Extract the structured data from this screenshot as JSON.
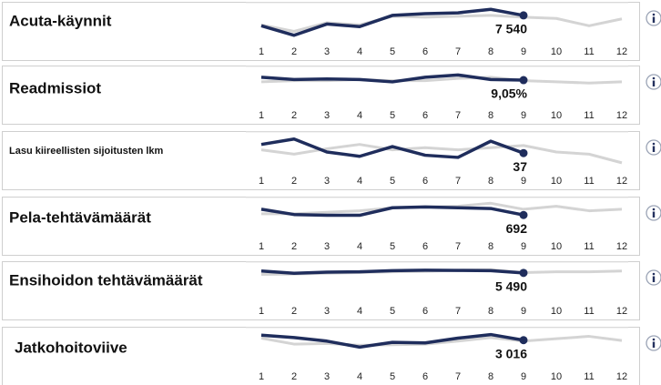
{
  "chart_data": [
    {
      "type": "line",
      "title": "Acuta-käynnit",
      "categories": [
        "1",
        "2",
        "3",
        "4",
        "5",
        "6",
        "7",
        "8",
        "9",
        "10",
        "11",
        "12"
      ],
      "series": [
        {
          "color": "#1f2d5c",
          "values": [
            7060,
            6620,
            7140,
            7020,
            7540,
            7620,
            7660,
            7820,
            7540,
            null,
            null,
            null
          ],
          "value_labels": [
            null,
            null,
            null,
            null,
            null,
            null,
            null,
            null,
            "7 540",
            null,
            null,
            null
          ]
        },
        {
          "color": "#d4d4d4",
          "values": [
            7100,
            6800,
            7200,
            7100,
            7500,
            7460,
            7500,
            7540,
            7460,
            7400,
            7060,
            7380
          ]
        }
      ],
      "ylim": [
        6400,
        8000
      ]
    },
    {
      "type": "line",
      "title": "Readmissiot",
      "categories": [
        "1",
        "2",
        "3",
        "4",
        "5",
        "6",
        "7",
        "8",
        "9",
        "10",
        "11",
        "12"
      ],
      "series": [
        {
          "color": "#1f2d5c",
          "values": [
            9.3,
            9.1,
            9.15,
            9.1,
            8.9,
            9.3,
            9.5,
            9.1,
            9.05,
            null,
            null,
            null
          ],
          "value_labels": [
            null,
            null,
            null,
            null,
            null,
            null,
            null,
            null,
            "9,05%",
            null,
            null,
            null
          ]
        },
        {
          "color": "#d4d4d4",
          "values": [
            8.9,
            9.0,
            9.0,
            9.1,
            9.0,
            9.0,
            9.2,
            9.3,
            9.0,
            8.9,
            8.8,
            8.9
          ]
        }
      ],
      "ylim": [
        7,
        10
      ]
    },
    {
      "type": "line",
      "title": "Lasu kiireellisten sijoitusten lkm",
      "categories": [
        "1",
        "2",
        "3",
        "4",
        "5",
        "6",
        "7",
        "8",
        "9",
        "10",
        "11",
        "12"
      ],
      "series": [
        {
          "color": "#1f2d5c",
          "values": [
            45,
            50,
            38,
            34,
            43,
            35,
            33,
            48,
            37,
            null,
            null,
            null
          ],
          "value_labels": [
            null,
            null,
            null,
            null,
            null,
            null,
            null,
            null,
            "37",
            null,
            null,
            null
          ]
        },
        {
          "color": "#d4d4d4",
          "values": [
            40,
            36,
            41,
            45,
            40,
            42,
            40,
            42,
            44,
            38,
            36,
            28
          ]
        }
      ],
      "ylim": [
        22,
        54
      ]
    },
    {
      "type": "line",
      "title": "Pela-tehtävämäärät",
      "categories": [
        "1",
        "2",
        "3",
        "4",
        "5",
        "6",
        "7",
        "8",
        "9",
        "10",
        "11",
        "12"
      ],
      "series": [
        {
          "color": "#1f2d5c",
          "values": [
            730,
            695,
            690,
            690,
            740,
            745,
            740,
            735,
            692,
            null,
            null,
            null
          ],
          "value_labels": [
            null,
            null,
            null,
            null,
            null,
            null,
            null,
            null,
            "692",
            null,
            null,
            null
          ]
        },
        {
          "color": "#d4d4d4",
          "values": [
            700,
            700,
            710,
            720,
            740,
            745,
            750,
            770,
            730,
            750,
            720,
            730
          ]
        }
      ],
      "ylim": [
        560,
        790
      ]
    },
    {
      "type": "line",
      "title": "Ensihoidon tehtävämäärät",
      "categories": [
        "1",
        "2",
        "3",
        "4",
        "5",
        "6",
        "7",
        "8",
        "9",
        "10",
        "11",
        "12"
      ],
      "series": [
        {
          "color": "#1f2d5c",
          "values": [
            5540,
            5480,
            5510,
            5520,
            5550,
            5560,
            5555,
            5550,
            5490,
            null,
            null,
            null
          ],
          "value_labels": [
            null,
            null,
            null,
            null,
            null,
            null,
            null,
            null,
            "5 490",
            null,
            null,
            null
          ]
        },
        {
          "color": "#d4d4d4",
          "values": [
            5450,
            5460,
            5480,
            5500,
            5520,
            5530,
            5560,
            5580,
            5500,
            5520,
            5520,
            5540
          ]
        }
      ],
      "ylim": [
        4800,
        5700
      ]
    },
    {
      "type": "line",
      "title": "Jatkohoitoviive",
      "categories": [
        "1",
        "2",
        "3",
        "4",
        "5",
        "6",
        "7",
        "8",
        "9",
        "10",
        "11",
        "12"
      ],
      "series": [
        {
          "color": "#1f2d5c",
          "values": [
            3100,
            3060,
            3000,
            2900,
            2980,
            2970,
            3050,
            3110,
            3016,
            null,
            null,
            null
          ],
          "value_labels": [
            null,
            null,
            null,
            null,
            null,
            null,
            null,
            null,
            "3 016",
            null,
            null,
            null
          ]
        },
        {
          "color": "#d4d4d4",
          "values": [
            3050,
            2950,
            2960,
            2930,
            2940,
            2950,
            3000,
            3060,
            3000,
            3040,
            3080,
            3010
          ]
        }
      ],
      "ylim": [
        2600,
        3180
      ]
    }
  ]
}
